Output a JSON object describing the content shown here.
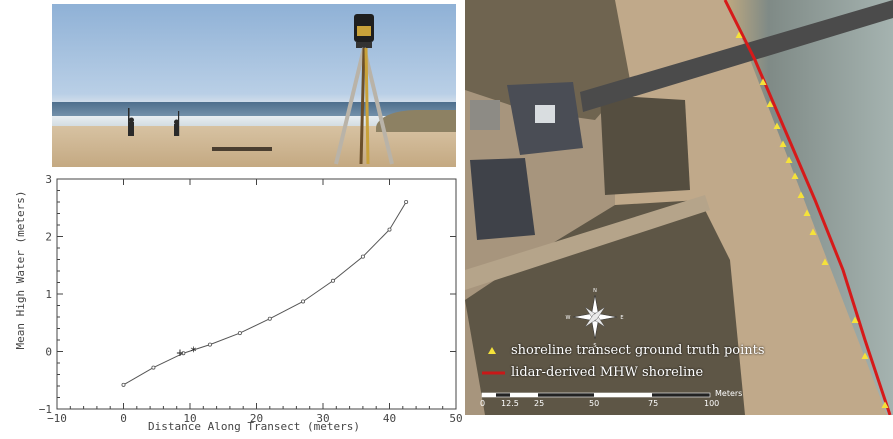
{
  "chart_data": {
    "type": "line",
    "xlabel": "Distance Along Transect (meters)",
    "ylabel": "Mean High Water (meters)",
    "xlim": [
      -10,
      50
    ],
    "ylim": [
      -1,
      3
    ],
    "x_ticks": [
      "−10",
      "0",
      "10",
      "20",
      "30",
      "40",
      "50"
    ],
    "y_ticks": [
      "−1",
      "0",
      "1",
      "2",
      "3"
    ],
    "grid": false,
    "x": [
      0,
      4.5,
      9,
      13,
      17.5,
      22,
      27,
      31.5,
      36,
      40,
      42.5
    ],
    "y": [
      -0.58,
      -0.28,
      -0.03,
      0.12,
      0.32,
      0.57,
      0.87,
      1.23,
      1.65,
      2.12,
      2.6
    ],
    "markers": [
      {
        "symbol": "+",
        "x": 8.5,
        "y": -0.02
      },
      {
        "symbol": "*",
        "x": 10.5,
        "y": 0.0
      }
    ]
  },
  "map": {
    "legend": [
      {
        "label": "shoreline transect ground truth points",
        "color": "#f5e23a",
        "icon": "triangle-marker"
      },
      {
        "label": "lidar-derived MHW shoreline",
        "color": "#c81818",
        "icon": "line-marker"
      }
    ],
    "scale_labels": [
      "0",
      "12.5",
      "25",
      "50",
      "75",
      "100"
    ],
    "scale_unit": "Meters",
    "compass_letters": [
      "N",
      "E",
      "S",
      "W"
    ],
    "shoreline_color": "#d61a1a",
    "point_color": "#f5e23a"
  }
}
